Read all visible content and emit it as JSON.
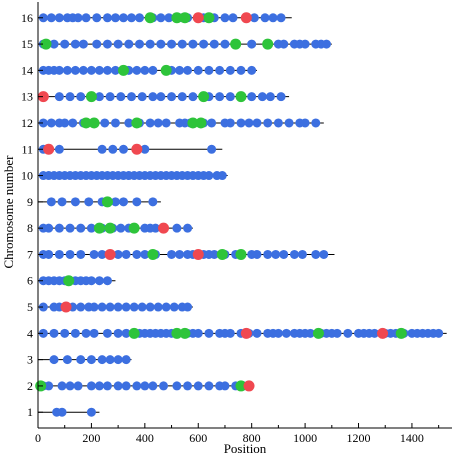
{
  "chart_data": {
    "type": "scatter",
    "xlabel": "Position",
    "ylabel": "Chromosome number",
    "xlim": [
      0,
      1550
    ],
    "ylim": [
      0.4,
      16.6
    ],
    "xticks": [
      0,
      200,
      400,
      600,
      800,
      1000,
      1200,
      1400
    ],
    "yticks": [
      1,
      2,
      3,
      4,
      5,
      6,
      7,
      8,
      9,
      10,
      11,
      12,
      13,
      14,
      15,
      16
    ],
    "colors": {
      "blue": "#3c6fe0",
      "green": "#2ec43a",
      "red": "#f04850",
      "line": "#000000"
    },
    "chromosomes": [
      {
        "chr": 1,
        "length": 230,
        "blue": [
          70,
          90,
          200
        ],
        "green": [],
        "red": []
      },
      {
        "chr": 2,
        "length": 810,
        "blue": [
          20,
          40,
          90,
          120,
          150,
          200,
          230,
          260,
          300,
          330,
          370,
          400,
          430,
          470,
          520,
          560,
          600,
          640,
          680,
          700,
          740,
          770,
          790
        ],
        "green": [
          10,
          760
        ],
        "red": [
          790
        ]
      },
      {
        "chr": 3,
        "length": 350,
        "blue": [
          60,
          110,
          160,
          200,
          240,
          270,
          300,
          330
        ],
        "green": [],
        "red": []
      },
      {
        "chr": 4,
        "length": 1530,
        "blue": [
          20,
          60,
          100,
          140,
          180,
          210,
          260,
          300,
          330,
          360,
          380,
          400,
          420,
          440,
          460,
          480,
          500,
          520,
          560,
          580,
          600,
          640,
          680,
          700,
          720,
          760,
          790,
          820,
          860,
          880,
          900,
          930,
          960,
          980,
          1000,
          1020,
          1060,
          1080,
          1100,
          1120,
          1160,
          1200,
          1220,
          1240,
          1260,
          1300,
          1320,
          1340,
          1370,
          1400,
          1420,
          1440,
          1460,
          1480,
          1500
        ],
        "green": [
          360,
          520,
          550,
          1050,
          1360
        ],
        "red": [
          780,
          1290
        ]
      },
      {
        "chr": 5,
        "length": 580,
        "blue": [
          20,
          60,
          80,
          130,
          160,
          190,
          210,
          240,
          270,
          300,
          330,
          360,
          390,
          420,
          450,
          480,
          510,
          540,
          560
        ],
        "green": [],
        "red": [
          105
        ]
      },
      {
        "chr": 6,
        "length": 290,
        "blue": [
          20,
          40,
          60,
          80,
          100,
          140,
          160,
          180,
          200,
          230,
          260
        ],
        "green": [
          115
        ],
        "red": []
      },
      {
        "chr": 7,
        "length": 1110,
        "blue": [
          20,
          40,
          80,
          120,
          160,
          210,
          240,
          300,
          330,
          370,
          400,
          440,
          500,
          530,
          560,
          580,
          620,
          640,
          660,
          700,
          740,
          760,
          800,
          820,
          860,
          890,
          920,
          960,
          990,
          1040,
          1070
        ],
        "green": [
          430,
          690,
          760
        ],
        "red": [
          270,
          600
        ]
      },
      {
        "chr": 8,
        "length": 580,
        "blue": [
          20,
          40,
          80,
          120,
          160,
          200,
          240,
          280,
          310,
          340,
          400,
          420,
          440,
          520,
          560
        ],
        "green": [
          230,
          270,
          360
        ],
        "red": [
          470
        ]
      },
      {
        "chr": 9,
        "length": 460,
        "blue": [
          50,
          90,
          140,
          190,
          240,
          290,
          320,
          370,
          430
        ],
        "green": [
          260
        ],
        "red": []
      },
      {
        "chr": 10,
        "length": 710,
        "blue": [
          20,
          40,
          60,
          80,
          100,
          120,
          140,
          160,
          180,
          200,
          220,
          240,
          260,
          280,
          300,
          320,
          340,
          360,
          380,
          400,
          420,
          440,
          460,
          480,
          500,
          520,
          540,
          560,
          580,
          600,
          620,
          640,
          670,
          690
        ],
        "green": [],
        "red": []
      },
      {
        "chr": 11,
        "length": 690,
        "blue": [
          20,
          80,
          240,
          280,
          320,
          400,
          650
        ],
        "green": [],
        "red": [
          40,
          370
        ]
      },
      {
        "chr": 12,
        "length": 1070,
        "blue": [
          20,
          50,
          80,
          100,
          130,
          170,
          210,
          250,
          290,
          340,
          380,
          420,
          450,
          480,
          530,
          550,
          570,
          620,
          650,
          700,
          720,
          760,
          790,
          820,
          860,
          900,
          940,
          980,
          1000,
          1040
        ],
        "green": [
          180,
          210,
          370,
          580,
          610
        ],
        "red": []
      },
      {
        "chr": 13,
        "length": 940,
        "blue": [
          20,
          80,
          120,
          160,
          200,
          230,
          270,
          310,
          350,
          390,
          430,
          460,
          500,
          540,
          580,
          640,
          680,
          720,
          760,
          800,
          840,
          870,
          910
        ],
        "green": [
          200,
          620,
          760
        ],
        "red": [
          20
        ]
      },
      {
        "chr": 14,
        "length": 820,
        "blue": [
          20,
          40,
          60,
          80,
          110,
          140,
          170,
          200,
          230,
          260,
          290,
          340,
          370,
          400,
          430,
          500,
          530,
          560,
          600,
          640,
          680,
          720,
          760,
          800
        ],
        "green": [
          320,
          480
        ],
        "red": []
      },
      {
        "chr": 15,
        "length": 1100,
        "blue": [
          20,
          60,
          100,
          140,
          170,
          220,
          260,
          300,
          340,
          380,
          420,
          460,
          500,
          540,
          580,
          620,
          660,
          700,
          740,
          800,
          860,
          900,
          920,
          960,
          980,
          1000,
          1040,
          1060,
          1080
        ],
        "green": [
          30,
          740,
          860
        ],
        "red": []
      },
      {
        "chr": 16,
        "length": 950,
        "blue": [
          20,
          50,
          80,
          110,
          130,
          150,
          180,
          220,
          260,
          290,
          320,
          350,
          380,
          430,
          460,
          490,
          540,
          560,
          620,
          660,
          700,
          730,
          810,
          850,
          880,
          910
        ],
        "green": [
          420,
          520,
          550,
          640
        ],
        "red": [
          600,
          780
        ]
      }
    ]
  }
}
